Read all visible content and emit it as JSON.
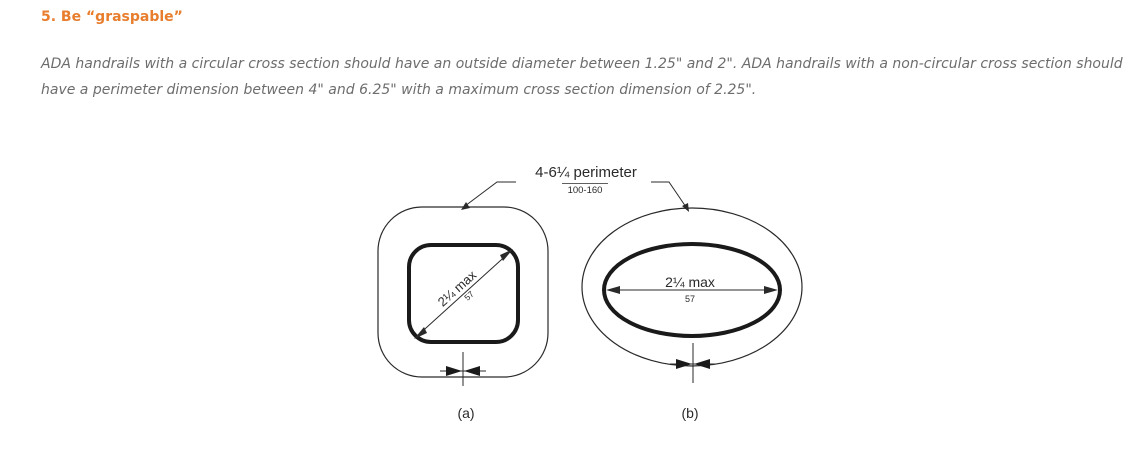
{
  "section": {
    "heading": "5. Be “graspable”",
    "paragraph": "ADA handrails with a circular cross section should have an outside diameter between 1.25\" and 2\". ADA handrails with a non-circular cross section should have a perimeter dimension between 4\" and 6.25\" with a maximum cross section dimension of 2.25\"."
  },
  "figure": {
    "perimeter_label": "4-6¼ perimeter",
    "perimeter_metric": "100-160",
    "a": {
      "dim_label": "2¼ max",
      "dim_metric": "57",
      "caption": "(a)"
    },
    "b": {
      "dim_label": "2¼ max",
      "dim_metric": "57",
      "caption": "(b)"
    }
  },
  "colors": {
    "heading": "#e87d2d",
    "body_text": "#6d6d6d",
    "drawing": "#2a2a2a"
  }
}
